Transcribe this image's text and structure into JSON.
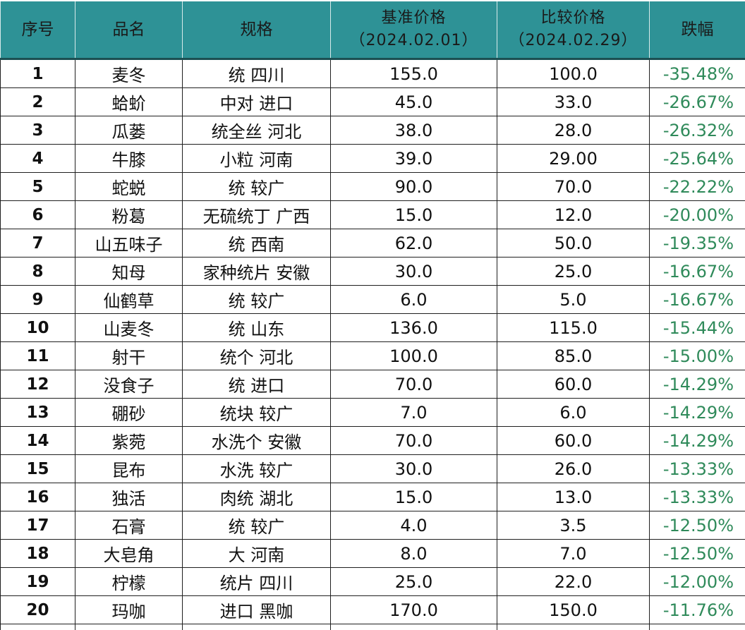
{
  "headers": {
    "no": "序号",
    "name": "品名",
    "spec": "规格",
    "base_price": "基准价格",
    "base_date": "（2024.02.01）",
    "cmp_price": "比较价格",
    "cmp_date": "（2024.02.29）",
    "change": "跌幅"
  },
  "rows": [
    {
      "no": "1",
      "name": "麦冬",
      "spec": "统 四川",
      "base": "155.0",
      "cmp": "100.0",
      "change": "-35.48%"
    },
    {
      "no": "2",
      "name": "蛤蚧",
      "spec": "中对 进口",
      "base": "45.0",
      "cmp": "33.0",
      "change": "-26.67%"
    },
    {
      "no": "3",
      "name": "瓜蒌",
      "spec": "统全丝 河北",
      "base": "38.0",
      "cmp": "28.0",
      "change": "-26.32%"
    },
    {
      "no": "4",
      "name": "牛膝",
      "spec": "小粒 河南",
      "base": "39.0",
      "cmp": "29.00",
      "change": "-25.64%"
    },
    {
      "no": "5",
      "name": "蛇蜕",
      "spec": "统 较广",
      "base": "90.0",
      "cmp": "70.0",
      "change": "-22.22%"
    },
    {
      "no": "6",
      "name": "粉葛",
      "spec": "无硫统丁 广西",
      "base": "15.0",
      "cmp": "12.0",
      "change": "-20.00%"
    },
    {
      "no": "7",
      "name": "山五味子",
      "spec": "统 西南",
      "base": "62.0",
      "cmp": "50.0",
      "change": "-19.35%"
    },
    {
      "no": "8",
      "name": "知母",
      "spec": "家种统片 安徽",
      "base": "30.0",
      "cmp": "25.0",
      "change": "-16.67%"
    },
    {
      "no": "9",
      "name": "仙鹤草",
      "spec": "统 较广",
      "base": "6.0",
      "cmp": "5.0",
      "change": "-16.67%"
    },
    {
      "no": "10",
      "name": "山麦冬",
      "spec": "统 山东",
      "base": "136.0",
      "cmp": "115.0",
      "change": "-15.44%"
    },
    {
      "no": "11",
      "name": "射干",
      "spec": "统个 河北",
      "base": "100.0",
      "cmp": "85.0",
      "change": "-15.00%"
    },
    {
      "no": "12",
      "name": "没食子",
      "spec": "统 进口",
      "base": "70.0",
      "cmp": "60.0",
      "change": "-14.29%"
    },
    {
      "no": "13",
      "name": "硼砂",
      "spec": "统块 较广",
      "base": "7.0",
      "cmp": "6.0",
      "change": "-14.29%"
    },
    {
      "no": "14",
      "name": "紫菀",
      "spec": "水洗个 安徽",
      "base": "70.0",
      "cmp": "60.0",
      "change": "-14.29%"
    },
    {
      "no": "15",
      "name": "昆布",
      "spec": "水洗 较广",
      "base": "30.0",
      "cmp": "26.0",
      "change": "-13.33%"
    },
    {
      "no": "16",
      "name": "独活",
      "spec": "肉统 湖北",
      "base": "15.0",
      "cmp": "13.0",
      "change": "-13.33%"
    },
    {
      "no": "17",
      "name": "石膏",
      "spec": "统 较广",
      "base": "4.0",
      "cmp": "3.5",
      "change": "-12.50%"
    },
    {
      "no": "18",
      "name": "大皂角",
      "spec": "大 河南",
      "base": "8.0",
      "cmp": "7.0",
      "change": "-12.50%"
    },
    {
      "no": "19",
      "name": "柠檬",
      "spec": "统片 四川",
      "base": "25.0",
      "cmp": "22.0",
      "change": "-12.00%"
    },
    {
      "no": "20",
      "name": "玛咖",
      "spec": "进口 黑咖",
      "base": "170.0",
      "cmp": "150.0",
      "change": "-11.76%"
    }
  ],
  "colors": {
    "header_bg": "#2e9296",
    "change_text": "#2f8a5a"
  }
}
